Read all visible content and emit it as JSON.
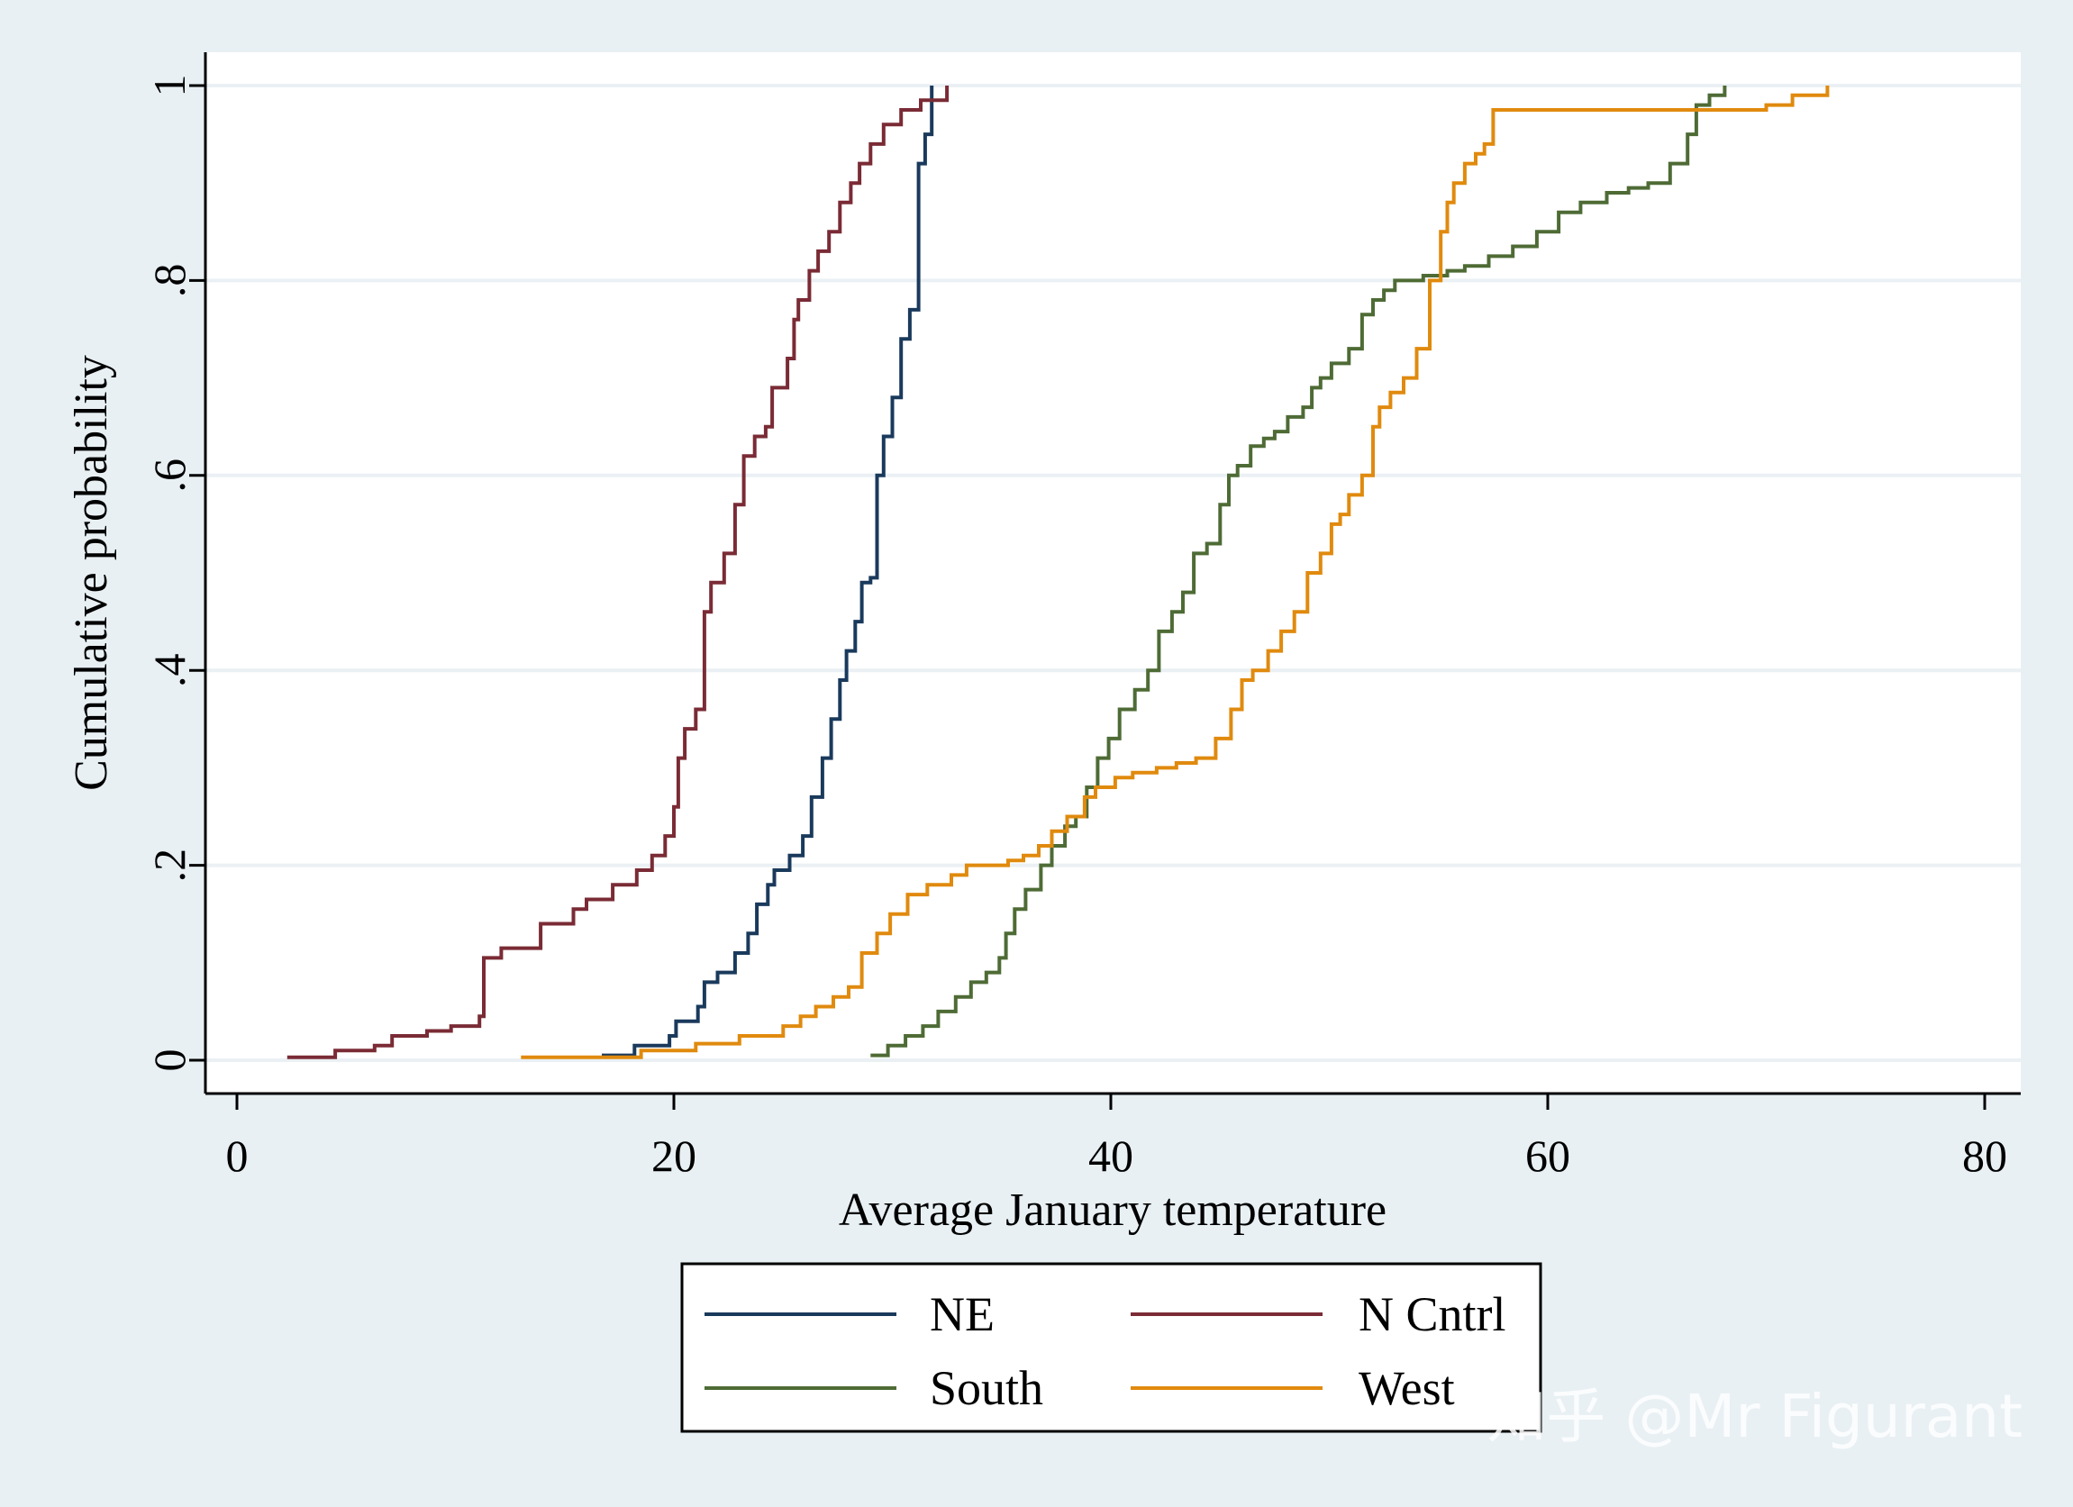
{
  "chart_data": {
    "type": "line",
    "step": true,
    "xlabel": "Average January temperature",
    "ylabel": "Cumulative probability",
    "xlim": [
      0,
      80
    ],
    "ylim": [
      0,
      1
    ],
    "xticks": [
      {
        "value": 0,
        "label": "0"
      },
      {
        "value": 20,
        "label": "20"
      },
      {
        "value": 40,
        "label": "40"
      },
      {
        "value": 60,
        "label": "60"
      },
      {
        "value": 80,
        "label": "80"
      }
    ],
    "yticks": [
      {
        "value": 0,
        "label": "0"
      },
      {
        "value": 0.2,
        "label": ".2"
      },
      {
        "value": 0.4,
        "label": ".4"
      },
      {
        "value": 0.6,
        "label": ".6"
      },
      {
        "value": 0.8,
        "label": ".8"
      },
      {
        "value": 1,
        "label": "1"
      }
    ],
    "grid": true,
    "legend_position": "bottom",
    "series": [
      {
        "name": "NE",
        "color": "#1a3a5c",
        "x": [
          16.7,
          18.2,
          19.8,
          20.1,
          21.1,
          21.4,
          22.0,
          22.8,
          23.4,
          23.8,
          24.3,
          24.6,
          25.3,
          25.9,
          26.3,
          26.8,
          27.2,
          27.6,
          27.9,
          28.3,
          28.6,
          29.0,
          29.3,
          29.6,
          30.0,
          30.4,
          30.8,
          31.2,
          31.5,
          31.8
        ],
        "y": [
          0.005,
          0.015,
          0.025,
          0.04,
          0.055,
          0.08,
          0.09,
          0.11,
          0.13,
          0.16,
          0.18,
          0.195,
          0.21,
          0.23,
          0.27,
          0.31,
          0.35,
          0.39,
          0.42,
          0.45,
          0.49,
          0.495,
          0.6,
          0.64,
          0.68,
          0.74,
          0.77,
          0.92,
          0.95,
          1.0
        ]
      },
      {
        "name": "N Cntrl",
        "color": "#7a2b35",
        "x": [
          2.3,
          4.5,
          6.3,
          7.1,
          8.7,
          9.8,
          11.1,
          11.3,
          12.1,
          13.9,
          15.4,
          16.0,
          17.2,
          18.3,
          19.0,
          19.6,
          20.0,
          20.2,
          20.5,
          21.0,
          21.4,
          21.7,
          22.3,
          22.8,
          23.2,
          23.7,
          24.2,
          24.5,
          25.2,
          25.5,
          25.7,
          26.2,
          26.6,
          27.1,
          27.6,
          28.1,
          28.5,
          29.0,
          29.6,
          30.4,
          31.3,
          32.5
        ],
        "y": [
          0.003,
          0.01,
          0.015,
          0.025,
          0.03,
          0.035,
          0.045,
          0.105,
          0.115,
          0.14,
          0.155,
          0.165,
          0.18,
          0.195,
          0.21,
          0.23,
          0.26,
          0.31,
          0.34,
          0.36,
          0.46,
          0.49,
          0.52,
          0.57,
          0.62,
          0.64,
          0.65,
          0.69,
          0.72,
          0.76,
          0.78,
          0.81,
          0.83,
          0.85,
          0.88,
          0.9,
          0.92,
          0.94,
          0.96,
          0.975,
          0.985,
          1.0
        ]
      },
      {
        "name": "South",
        "color": "#4e6b35",
        "x": [
          29.0,
          29.8,
          30.6,
          31.4,
          32.1,
          32.9,
          33.6,
          34.3,
          34.9,
          35.2,
          35.6,
          36.1,
          36.8,
          37.3,
          37.9,
          38.4,
          38.9,
          39.4,
          39.9,
          40.4,
          41.1,
          41.7,
          42.2,
          42.8,
          43.3,
          43.8,
          44.4,
          45.0,
          45.4,
          45.8,
          46.4,
          47.0,
          47.5,
          48.1,
          48.8,
          49.2,
          49.6,
          50.1,
          50.9,
          51.5,
          52.0,
          52.5,
          53.0,
          54.3,
          55.4,
          56.2,
          57.3,
          58.4,
          59.5,
          60.5,
          61.5,
          62.7,
          63.7,
          64.6,
          65.6,
          66.4,
          66.8,
          67.4,
          68.1
        ],
        "y": [
          0.005,
          0.015,
          0.025,
          0.035,
          0.05,
          0.065,
          0.08,
          0.09,
          0.105,
          0.13,
          0.155,
          0.175,
          0.2,
          0.22,
          0.24,
          0.25,
          0.28,
          0.31,
          0.33,
          0.36,
          0.38,
          0.4,
          0.44,
          0.46,
          0.48,
          0.52,
          0.53,
          0.57,
          0.6,
          0.61,
          0.63,
          0.638,
          0.645,
          0.66,
          0.67,
          0.69,
          0.7,
          0.715,
          0.73,
          0.765,
          0.78,
          0.79,
          0.8,
          0.805,
          0.81,
          0.815,
          0.825,
          0.835,
          0.85,
          0.87,
          0.88,
          0.89,
          0.895,
          0.9,
          0.92,
          0.95,
          0.98,
          0.99,
          1.0
        ]
      },
      {
        "name": "West",
        "color": "#e08a0e",
        "x": [
          13.0,
          18.5,
          21.0,
          23.0,
          25.0,
          25.8,
          26.5,
          27.3,
          28.0,
          28.6,
          29.3,
          29.9,
          30.7,
          31.6,
          32.7,
          33.4,
          35.3,
          36.0,
          36.7,
          37.3,
          38.0,
          38.8,
          39.3,
          40.2,
          41.0,
          42.1,
          43.0,
          43.9,
          44.8,
          45.5,
          46.0,
          46.5,
          47.2,
          47.8,
          48.4,
          49.0,
          49.6,
          50.1,
          50.5,
          50.9,
          51.5,
          52.0,
          52.3,
          52.8,
          53.4,
          54.0,
          54.6,
          55.1,
          55.4,
          55.7,
          56.2,
          56.7,
          57.1,
          57.5,
          64.0,
          70.0,
          71.2,
          72.8
        ],
        "y": [
          0.003,
          0.01,
          0.017,
          0.025,
          0.035,
          0.045,
          0.055,
          0.065,
          0.075,
          0.11,
          0.13,
          0.15,
          0.17,
          0.18,
          0.19,
          0.2,
          0.205,
          0.21,
          0.22,
          0.235,
          0.25,
          0.27,
          0.28,
          0.29,
          0.295,
          0.3,
          0.305,
          0.31,
          0.33,
          0.36,
          0.39,
          0.4,
          0.42,
          0.44,
          0.46,
          0.5,
          0.52,
          0.55,
          0.56,
          0.58,
          0.6,
          0.65,
          0.67,
          0.685,
          0.7,
          0.73,
          0.8,
          0.85,
          0.88,
          0.9,
          0.92,
          0.93,
          0.94,
          0.975,
          0.975,
          0.98,
          0.99,
          1.0
        ]
      }
    ]
  },
  "watermark": "知乎 @Mr Figurant"
}
